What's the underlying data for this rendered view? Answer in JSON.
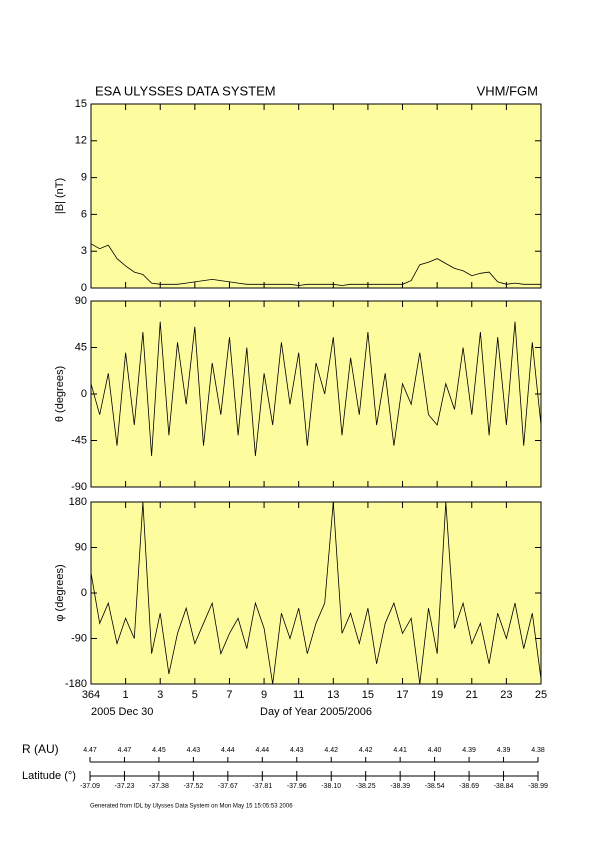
{
  "header": {
    "title": "ESA ULYSSES DATA SYSTEM",
    "instrument": "VHM/FGM",
    "start_date": "2005 Dec 30",
    "x_axis_label": "Day of Year 2005/2006",
    "footer": "Generated from IDL by Ulysses Data System on Mon May 15 15:05:53 2006"
  },
  "ephemeris": {
    "r_label": "R (AU)",
    "r_values": [
      "4.47",
      "4.47",
      "4.45",
      "4.43",
      "4.44",
      "4.44",
      "4.43",
      "4.42",
      "4.42",
      "4.41",
      "4.40",
      "4.39",
      "4.39",
      "4.38"
    ],
    "lat_label": "Latitude (°)",
    "lat_values": [
      "-37.09",
      "-37.23",
      "-37.38",
      "-37.52",
      "-37.67",
      "-37.81",
      "-37.96",
      "-38.10",
      "-38.25",
      "-38.39",
      "-38.54",
      "-38.69",
      "-38.84",
      "-38.99"
    ]
  },
  "chart_data": [
    {
      "type": "line",
      "ylabel": "|B| (nT)",
      "background": "#fdfda0",
      "color": "#000000",
      "x": [
        364,
        364.5,
        365,
        365.5,
        366,
        366.5,
        367,
        367.5,
        368,
        368.5,
        369,
        369.5,
        370,
        370.5,
        371,
        371.5,
        372,
        372.5,
        373,
        373.5,
        374,
        374.5,
        375,
        375.5,
        376,
        376.5,
        377,
        377.5,
        378,
        378.5,
        379,
        379.5,
        380,
        380.5,
        381,
        381.5,
        382,
        382.5,
        383,
        383.5,
        384,
        384.5,
        385,
        385.5,
        386,
        386.5,
        387,
        387.5,
        388,
        388.5,
        389,
        389.5,
        390
      ],
      "values": [
        3.6,
        3.2,
        3.5,
        2.4,
        1.8,
        1.3,
        1.1,
        0.4,
        0.3,
        0.3,
        0.3,
        0.4,
        0.5,
        0.6,
        0.7,
        0.6,
        0.5,
        0.4,
        0.3,
        0.3,
        0.3,
        0.3,
        0.3,
        0.3,
        0.2,
        0.3,
        0.3,
        0.3,
        0.3,
        0.2,
        0.3,
        0.3,
        0.3,
        0.3,
        0.3,
        0.3,
        0.3,
        0.6,
        1.9,
        2.1,
        2.4,
        2.0,
        1.6,
        1.4,
        1.0,
        1.2,
        1.3,
        0.5,
        0.3,
        0.4,
        0.3,
        0.3,
        0.3
      ],
      "xlim": [
        364,
        390
      ],
      "xticks": [
        364,
        366,
        368,
        370,
        372,
        374,
        376,
        378,
        380,
        382,
        384,
        386,
        388,
        390
      ],
      "ylim": [
        0,
        15
      ],
      "yticks": [
        0,
        3,
        6,
        9,
        12,
        15
      ]
    },
    {
      "type": "line",
      "ylabel": "θ (degrees)",
      "background": "#fdfda0",
      "color": "#000000",
      "x": [
        364,
        364.5,
        365,
        365.5,
        366,
        366.5,
        367,
        367.5,
        368,
        368.5,
        369,
        369.5,
        370,
        370.5,
        371,
        371.5,
        372,
        372.5,
        373,
        373.5,
        374,
        374.5,
        375,
        375.5,
        376,
        376.5,
        377,
        377.5,
        378,
        378.5,
        379,
        379.5,
        380,
        380.5,
        381,
        381.5,
        382,
        382.5,
        383,
        383.5,
        384,
        384.5,
        385,
        385.5,
        386,
        386.5,
        387,
        387.5,
        388,
        388.5,
        389,
        389.5,
        390
      ],
      "values": [
        10,
        -20,
        20,
        -50,
        40,
        -30,
        60,
        -60,
        70,
        -40,
        50,
        -10,
        65,
        -50,
        30,
        -20,
        55,
        -40,
        45,
        -60,
        20,
        -30,
        50,
        -10,
        40,
        -50,
        30,
        0,
        55,
        -40,
        35,
        -20,
        60,
        -30,
        20,
        -50,
        10,
        -10,
        40,
        -20,
        -30,
        10,
        -15,
        45,
        -20,
        60,
        -40,
        55,
        -30,
        70,
        -50,
        50,
        -30
      ],
      "xlim": [
        364,
        390
      ],
      "xticks": [
        364,
        366,
        368,
        370,
        372,
        374,
        376,
        378,
        380,
        382,
        384,
        386,
        388,
        390
      ],
      "ylim": [
        -90,
        90
      ],
      "yticks": [
        -90,
        -45,
        0,
        45,
        90
      ]
    },
    {
      "type": "line",
      "ylabel": "φ (degrees)",
      "background": "#fdfda0",
      "color": "#000000",
      "x": [
        364,
        364.5,
        365,
        365.5,
        366,
        366.5,
        367,
        367.5,
        368,
        368.5,
        369,
        369.5,
        370,
        370.5,
        371,
        371.5,
        372,
        372.5,
        373,
        373.5,
        374,
        374.5,
        375,
        375.5,
        376,
        376.5,
        377,
        377.5,
        378,
        378.5,
        379,
        379.5,
        380,
        380.5,
        381,
        381.5,
        382,
        382.5,
        383,
        383.5,
        384,
        384.5,
        385,
        385.5,
        386,
        386.5,
        387,
        387.5,
        388,
        388.5,
        389,
        389.5,
        390
      ],
      "values": [
        40,
        -60,
        -20,
        -100,
        -50,
        -90,
        180,
        -120,
        -40,
        -160,
        -80,
        -30,
        -100,
        -60,
        -20,
        -120,
        -80,
        -50,
        -110,
        -20,
        -70,
        -180,
        -40,
        -90,
        -30,
        -120,
        -60,
        -20,
        180,
        -80,
        -40,
        -100,
        -30,
        -140,
        -60,
        -20,
        -80,
        -50,
        -180,
        -30,
        -120,
        180,
        -70,
        -20,
        -100,
        -60,
        -140,
        -40,
        -90,
        -20,
        -110,
        -40,
        -170
      ],
      "xlim": [
        364,
        390
      ],
      "xticks": [
        364,
        {
          "value": 366,
          "label": "1"
        },
        {
          "value": 368,
          "label": "3"
        },
        {
          "value": 370,
          "label": "5"
        },
        {
          "value": 372,
          "label": "7"
        },
        {
          "value": 374,
          "label": "9"
        },
        {
          "value": 376,
          "label": "11"
        },
        {
          "value": 378,
          "label": "13"
        },
        {
          "value": 380,
          "label": "15"
        },
        {
          "value": 382,
          "label": "17"
        },
        {
          "value": 384,
          "label": "19"
        },
        {
          "value": 386,
          "label": "21"
        },
        {
          "value": 388,
          "label": "23"
        },
        {
          "value": 390,
          "label": "25"
        }
      ],
      "ylim": [
        -180,
        180
      ],
      "yticks": [
        -180,
        -90,
        0,
        90,
        180
      ]
    }
  ]
}
